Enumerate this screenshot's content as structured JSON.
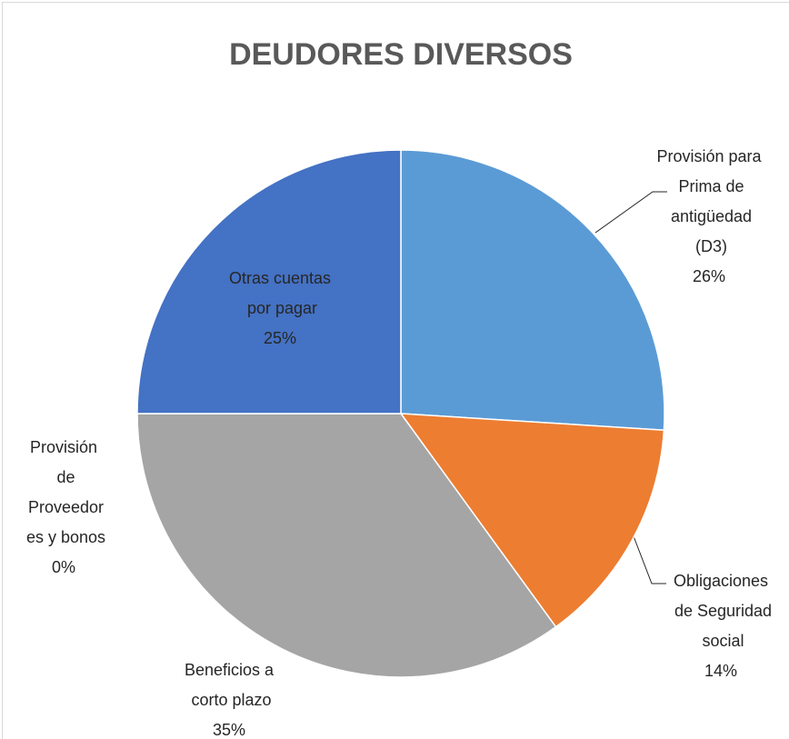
{
  "chart_data": {
    "type": "pie",
    "title": "DEUDORES DIVERSOS",
    "categories": [
      "Provisión para Prima de antigüedad (D3)",
      "Obligaciones de Seguridad social",
      "Beneficios a corto plazo",
      "Provisión de Proveedores y bonos",
      "Otras cuentas por pagar"
    ],
    "values": [
      26,
      14,
      35,
      0,
      25
    ],
    "value_labels": [
      "26%",
      "14%",
      "35%",
      "0%",
      "25%"
    ],
    "colors": [
      "#5b9bd5",
      "#ed7d31",
      "#a5a5a5",
      "#ffc000",
      "#4472c4"
    ]
  }
}
